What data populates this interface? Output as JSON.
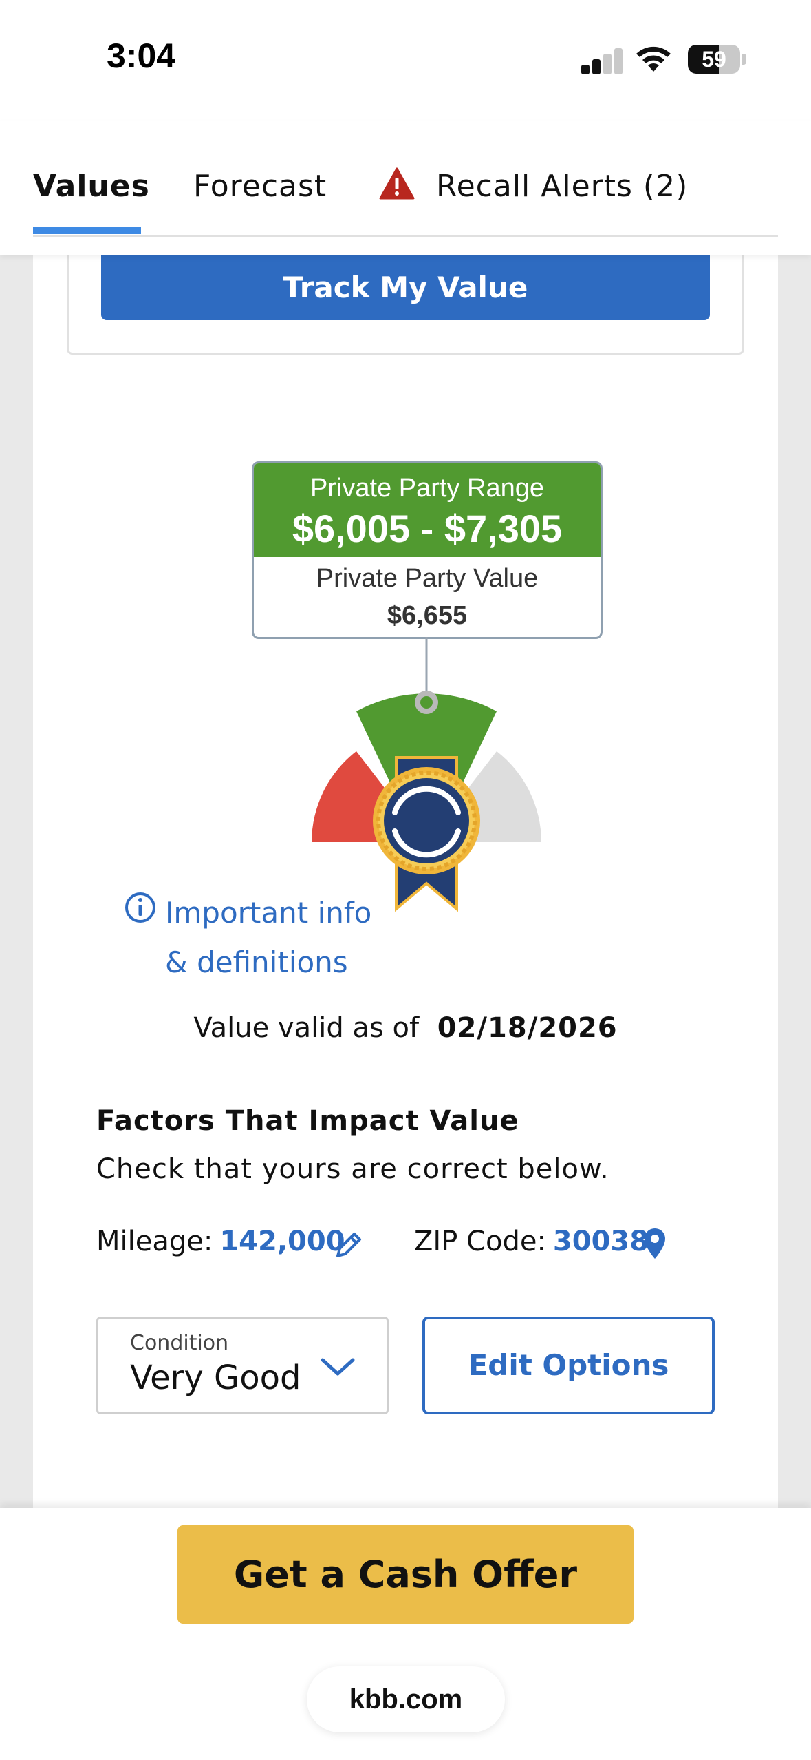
{
  "status_bar": {
    "time": "3:04",
    "battery": "59",
    "battery_level": 0.59
  },
  "tabs": [
    {
      "label": "Values",
      "active": true
    },
    {
      "label": "Forecast",
      "active": false
    },
    {
      "label": "Recall Alerts (2)",
      "active": false,
      "icon": "warning-icon"
    }
  ],
  "track_button": {
    "label": "Track My Value"
  },
  "valuation": {
    "range_label": "Private Party Range",
    "range_value": "$6,005 - $7,305",
    "value_label": "Private Party Value",
    "value": "$6,655"
  },
  "info_link": {
    "line1": "Important info",
    "line2": "& definitions"
  },
  "valid": {
    "label": "Value valid as of",
    "date": "02/18/2026"
  },
  "factors": {
    "title": "Factors That Impact Value",
    "subtitle": "Check that yours are correct below.",
    "mileage_label": "Mileage:",
    "mileage_value": "142,000",
    "zip_label": "ZIP Code:",
    "zip_value": "30038"
  },
  "condition": {
    "label": "Condition",
    "value": "Very Good"
  },
  "edit_options": {
    "label": "Edit Options"
  },
  "cash_offer": {
    "label": "Get a Cash Offer"
  },
  "browser": {
    "url": "kbb.com"
  },
  "colors": {
    "brand_blue": "#2e6bc1",
    "range_green": "#519a30",
    "cash_yellow": "#ebbd49",
    "gauge_red": "#e04a3f",
    "gauge_grey": "#dddddd",
    "badge_navy": "#233e73",
    "badge_gold": "#f0b63a"
  }
}
